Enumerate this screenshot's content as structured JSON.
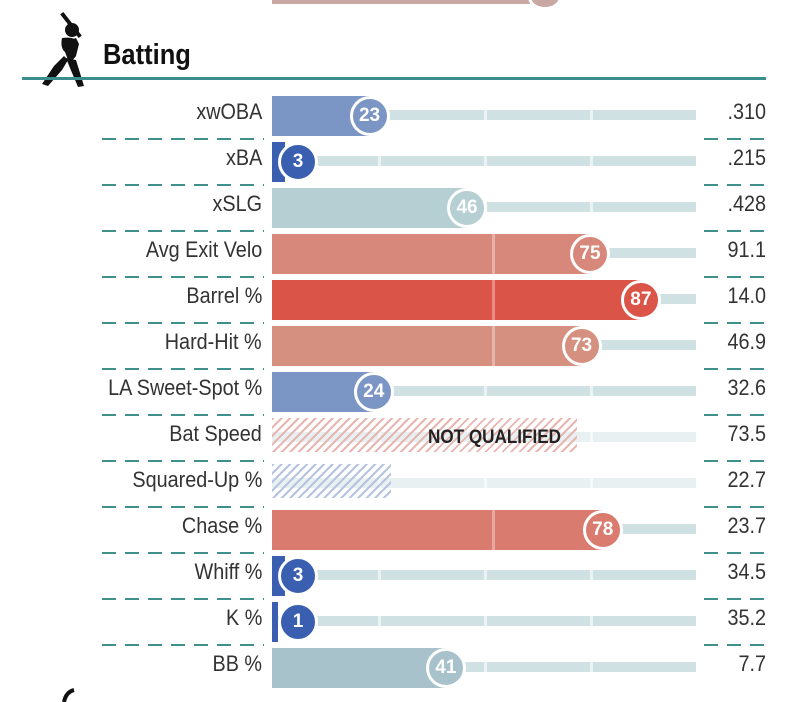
{
  "section": {
    "title": "Batting",
    "icon": "batter-icon"
  },
  "colors": {
    "accent": "#3a8f8c",
    "track": "#cfe1e2",
    "percentile_low": "#3a5fb0",
    "percentile_mid": "#b3cfd3",
    "percentile_high": "#d9534a"
  },
  "rows": [
    {
      "label": "xwOBA",
      "percentile": 23,
      "percentile_text": "23",
      "value": ".310",
      "qualified": true,
      "bar_color": "#7b95c4",
      "bubble_color": "#7b95c4"
    },
    {
      "label": "xBA",
      "percentile": 3,
      "percentile_text": "3",
      "value": ".215",
      "qualified": true,
      "bar_color": "#3a5fb0",
      "bubble_color": "#3a5fb0"
    },
    {
      "label": "xSLG",
      "percentile": 46,
      "percentile_text": "46",
      "value": ".428",
      "qualified": true,
      "bar_color": "#b5cfd3",
      "bubble_color": "#b5cfd3"
    },
    {
      "label": "Avg Exit Velo",
      "percentile": 75,
      "percentile_text": "75",
      "value": "91.1",
      "qualified": true,
      "bar_color": "#d8887a",
      "bubble_color": "#d8887a"
    },
    {
      "label": "Barrel %",
      "percentile": 87,
      "percentile_text": "87",
      "value": "14.0",
      "qualified": true,
      "bar_color": "#db5448",
      "bubble_color": "#db5448"
    },
    {
      "label": "Hard-Hit %",
      "percentile": 73,
      "percentile_text": "73",
      "value": "46.9",
      "qualified": true,
      "bar_color": "#d5907f",
      "bubble_color": "#d5907f"
    },
    {
      "label": "LA Sweet-Spot %",
      "percentile": 24,
      "percentile_text": "24",
      "value": "32.6",
      "qualified": true,
      "bar_color": "#7b95c4",
      "bubble_color": "#7b95c4"
    },
    {
      "label": "Bat Speed",
      "percentile": 72,
      "percentile_text": "",
      "value": "73.5",
      "qualified": false,
      "status_text": "NOT QUALIFIED",
      "hatch_color": "#e8b6b0"
    },
    {
      "label": "Squared-Up %",
      "percentile": 28,
      "percentile_text": "",
      "value": "22.7",
      "qualified": false,
      "status_text": "",
      "hatch_color": "#b7c4df"
    },
    {
      "label": "Chase %",
      "percentile": 78,
      "percentile_text": "78",
      "value": "23.7",
      "qualified": true,
      "bar_color": "#d97b6e",
      "bubble_color": "#d97b6e"
    },
    {
      "label": "Whiff %",
      "percentile": 3,
      "percentile_text": "3",
      "value": "34.5",
      "qualified": true,
      "bar_color": "#3a5fb0",
      "bubble_color": "#3a5fb0"
    },
    {
      "label": "K %",
      "percentile": 1,
      "percentile_text": "1",
      "value": "35.2",
      "qualified": true,
      "bar_color": "#3a5fb0",
      "bubble_color": "#3a5fb0"
    },
    {
      "label": "BB %",
      "percentile": 41,
      "percentile_text": "41",
      "value": "7.7",
      "qualified": true,
      "bar_color": "#a7c2cb",
      "bubble_color": "#a7c2cb"
    }
  ]
}
